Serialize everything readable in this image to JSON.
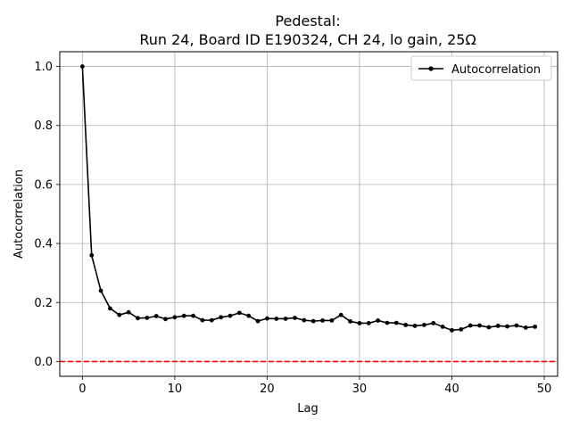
{
  "chart_data": {
    "type": "line",
    "title": "Pedestal:",
    "subtitle": "Run 24, Board ID E190324, CH 24, lo gain, 25Ω",
    "xlabel": "Lag",
    "ylabel": "Autocorrelation",
    "xlim": [
      -2.45,
      51.45
    ],
    "ylim": [
      -0.05,
      1.05
    ],
    "xticks": [
      0,
      10,
      20,
      30,
      40,
      50
    ],
    "xtick_labels": [
      "0",
      "10",
      "20",
      "30",
      "40",
      "50"
    ],
    "yticks": [
      0.0,
      0.2,
      0.4,
      0.6,
      0.8,
      1.0
    ],
    "ytick_labels": [
      "0.0",
      "0.2",
      "0.4",
      "0.6",
      "0.8",
      "1.0"
    ],
    "grid": true,
    "legend_position": "top-right",
    "series": [
      {
        "name": "Autocorrelation",
        "color": "#000000",
        "marker": "dot",
        "x": [
          0,
          1,
          2,
          3,
          4,
          5,
          6,
          7,
          8,
          9,
          10,
          11,
          12,
          13,
          14,
          15,
          16,
          17,
          18,
          19,
          20,
          21,
          22,
          23,
          24,
          25,
          26,
          27,
          28,
          29,
          30,
          31,
          32,
          33,
          34,
          35,
          36,
          37,
          38,
          39,
          40,
          41,
          42,
          43,
          44,
          45,
          46,
          47,
          48,
          49
        ],
        "values": [
          1.0,
          0.36,
          0.24,
          0.18,
          0.158,
          0.167,
          0.147,
          0.148,
          0.154,
          0.144,
          0.15,
          0.155,
          0.155,
          0.14,
          0.14,
          0.15,
          0.155,
          0.165,
          0.155,
          0.137,
          0.146,
          0.145,
          0.145,
          0.148,
          0.14,
          0.137,
          0.139,
          0.139,
          0.158,
          0.136,
          0.13,
          0.13,
          0.139,
          0.131,
          0.131,
          0.124,
          0.121,
          0.124,
          0.13,
          0.118,
          0.106,
          0.109,
          0.122,
          0.122,
          0.116,
          0.121,
          0.119,
          0.122,
          0.115,
          0.118
        ]
      }
    ],
    "reference_line": {
      "y": 0.0,
      "color": "#ff0000",
      "style": "dashed"
    }
  }
}
